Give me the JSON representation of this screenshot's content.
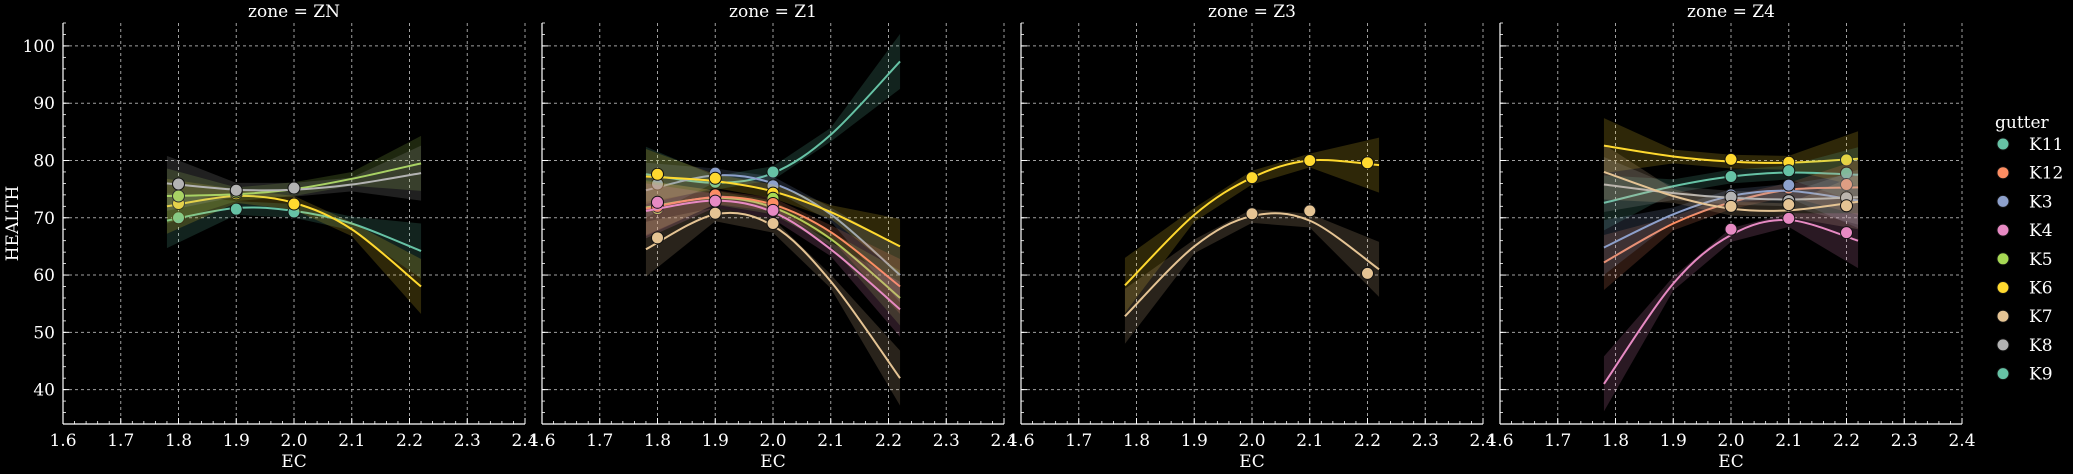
{
  "chart_data": {
    "type": "line",
    "xlabel": "EC",
    "ylabel": "HEALTH",
    "xlim": [
      1.6,
      2.4
    ],
    "ylim": [
      34,
      104
    ],
    "xticks": [
      "1.6",
      "1.7",
      "1.8",
      "1.9",
      "2.0",
      "2.1",
      "2.2",
      "2.3",
      "2.4"
    ],
    "yticks": [
      "40",
      "50",
      "60",
      "70",
      "80",
      "90",
      "100"
    ],
    "grid": true,
    "legend": {
      "title": "gutter",
      "placement": "right",
      "entries": [
        "K11",
        "K12",
        "K3",
        "K4",
        "K5",
        "K6",
        "K7",
        "K8",
        "K9"
      ]
    },
    "colors": {
      "K11": "#66c2a5",
      "K12": "#fc8d62",
      "K3": "#8da0cb",
      "K4": "#e78ac3",
      "K5": "#a6d854",
      "K6": "#ffd92f",
      "K7": "#e5c494",
      "K8": "#b3b3b3",
      "K9": "#66c2a5"
    },
    "panels": [
      {
        "title": "zone = ZN",
        "series": [
          {
            "name": "K9",
            "points": [
              [
                1.8,
                70.0
              ],
              [
                1.9,
                71.5
              ],
              [
                2.0,
                71.0
              ]
            ],
            "fit": [
              [
                1.78,
                69.5
              ],
              [
                1.9,
                71.7
              ],
              [
                2.0,
                71.2
              ],
              [
                2.1,
                69.0
              ],
              [
                2.22,
                64.2
              ]
            ]
          },
          {
            "name": "K6",
            "points": [
              [
                1.8,
                72.5
              ],
              [
                1.9,
                74.2
              ],
              [
                2.0,
                72.4
              ]
            ],
            "fit": [
              [
                1.78,
                72.0
              ],
              [
                1.9,
                73.8
              ],
              [
                2.0,
                72.6
              ],
              [
                2.1,
                68.0
              ],
              [
                2.22,
                58.0
              ]
            ]
          },
          {
            "name": "K5",
            "points": [
              [
                1.8,
                73.8
              ],
              [
                1.9,
                74.5
              ],
              [
                2.0,
                75.0
              ]
            ],
            "fit": [
              [
                1.78,
                73.8
              ],
              [
                1.9,
                74.1
              ],
              [
                2.0,
                75.0
              ],
              [
                2.1,
                76.8
              ],
              [
                2.22,
                79.5
              ]
            ]
          },
          {
            "name": "K8",
            "points": [
              [
                1.8,
                75.9
              ],
              [
                1.9,
                74.8
              ],
              [
                2.0,
                75.2
              ]
            ],
            "fit": [
              [
                1.78,
                76.0
              ],
              [
                1.9,
                74.9
              ],
              [
                2.0,
                74.9
              ],
              [
                2.1,
                75.8
              ],
              [
                2.22,
                77.8
              ]
            ]
          }
        ]
      },
      {
        "title": "zone = Z1",
        "series": [
          {
            "name": "K11",
            "points": [
              [
                1.8,
                77.2
              ],
              [
                1.9,
                76.2
              ],
              [
                2.0,
                78.0
              ]
            ],
            "fit": [
              [
                1.78,
                77.6
              ],
              [
                1.9,
                76.1
              ],
              [
                2.0,
                77.8
              ],
              [
                2.1,
                84.5
              ],
              [
                2.22,
                97.3
              ]
            ]
          },
          {
            "name": "K3",
            "points": [
              [
                1.8,
                75.9
              ],
              [
                1.9,
                77.8
              ],
              [
                2.0,
                75.6
              ]
            ],
            "fit": [
              [
                1.78,
                74.8
              ],
              [
                1.9,
                77.4
              ],
              [
                2.0,
                76.0
              ],
              [
                2.1,
                70.6
              ],
              [
                2.22,
                60.0
              ]
            ]
          },
          {
            "name": "K6",
            "points": [
              [
                1.8,
                77.6
              ],
              [
                1.9,
                76.9
              ],
              [
                2.0,
                74.3
              ]
            ],
            "fit": [
              [
                1.78,
                77.2
              ],
              [
                1.9,
                76.4
              ],
              [
                2.0,
                74.6
              ],
              [
                2.1,
                71.0
              ],
              [
                2.22,
                65.0
              ]
            ]
          },
          {
            "name": "K5",
            "points": [
              [
                1.8,
                71.6
              ],
              [
                1.9,
                74.0
              ],
              [
                2.0,
                73.4
              ]
            ],
            "fit": [
              [
                1.78,
                71.8
              ],
              [
                1.9,
                73.5
              ],
              [
                2.0,
                71.8
              ],
              [
                2.1,
                66.3
              ],
              [
                2.22,
                56.0
              ]
            ]
          },
          {
            "name": "K12",
            "points": [
              [
                1.8,
                72.0
              ],
              [
                1.9,
                74.0
              ],
              [
                2.0,
                72.5
              ]
            ],
            "fit": [
              [
                1.78,
                71.6
              ],
              [
                1.9,
                73.6
              ],
              [
                2.0,
                72.3
              ],
              [
                2.1,
                67.5
              ],
              [
                2.22,
                58.0
              ]
            ]
          },
          {
            "name": "K4",
            "points": [
              [
                1.8,
                72.7
              ],
              [
                1.9,
                72.9
              ],
              [
                2.0,
                71.3
              ]
            ],
            "fit": [
              [
                1.78,
                71.2
              ],
              [
                1.9,
                73.0
              ],
              [
                2.0,
                71.0
              ],
              [
                2.1,
                64.5
              ],
              [
                2.22,
                54.0
              ]
            ]
          },
          {
            "name": "K7",
            "points": [
              [
                1.8,
                66.5
              ],
              [
                1.9,
                70.8
              ],
              [
                2.0,
                69.0
              ]
            ],
            "fit": [
              [
                1.78,
                64.5
              ],
              [
                1.9,
                70.6
              ],
              [
                2.0,
                68.6
              ],
              [
                2.1,
                58.9
              ],
              [
                2.22,
                42.0
              ]
            ]
          }
        ]
      },
      {
        "title": "zone = Z3",
        "series": [
          {
            "name": "K6",
            "points": [
              [
                2.0,
                77.0
              ],
              [
                2.1,
                80.0
              ],
              [
                2.2,
                79.6
              ]
            ],
            "fit": [
              [
                1.78,
                58.2
              ],
              [
                1.9,
                70.5
              ],
              [
                2.0,
                77.0
              ],
              [
                2.1,
                80.0
              ],
              [
                2.22,
                79.2
              ]
            ]
          },
          {
            "name": "K7",
            "points": [
              [
                2.0,
                70.7
              ],
              [
                2.1,
                71.2
              ],
              [
                2.2,
                60.3
              ]
            ],
            "fit": [
              [
                1.78,
                52.8
              ],
              [
                1.9,
                65.0
              ],
              [
                2.0,
                70.3
              ],
              [
                2.1,
                69.5
              ],
              [
                2.22,
                61.0
              ]
            ]
          }
        ]
      },
      {
        "title": "zone = Z4",
        "series": [
          {
            "name": "K6",
            "points": [
              [
                2.0,
                80.2
              ],
              [
                2.1,
                79.7
              ],
              [
                2.2,
                80.1
              ]
            ],
            "fit": [
              [
                1.78,
                82.6
              ],
              [
                1.9,
                80.7
              ],
              [
                2.0,
                79.8
              ],
              [
                2.1,
                79.6
              ],
              [
                2.22,
                80.3
              ]
            ]
          },
          {
            "name": "K11",
            "points": [
              [
                2.0,
                77.2
              ],
              [
                2.1,
                78.2
              ],
              [
                2.2,
                77.8
              ]
            ],
            "fit": [
              [
                1.78,
                72.6
              ],
              [
                1.9,
                75.5
              ],
              [
                2.0,
                77.2
              ],
              [
                2.1,
                77.9
              ],
              [
                2.22,
                77.5
              ]
            ]
          },
          {
            "name": "K12",
            "points": [
              [
                2.0,
                72.5
              ],
              [
                2.1,
                75.2
              ],
              [
                2.2,
                75.8
              ]
            ],
            "fit": [
              [
                1.78,
                62.2
              ],
              [
                1.9,
                69.0
              ],
              [
                2.0,
                72.7
              ],
              [
                2.1,
                74.9
              ],
              [
                2.22,
                75.3
              ]
            ]
          },
          {
            "name": "K3",
            "points": [
              [
                2.0,
                74.0
              ],
              [
                2.1,
                75.7
              ],
              [
                2.2,
                73.4
              ]
            ],
            "fit": [
              [
                1.78,
                64.8
              ],
              [
                1.9,
                70.6
              ],
              [
                2.0,
                73.8
              ],
              [
                2.1,
                74.7
              ],
              [
                2.22,
                73.0
              ]
            ]
          },
          {
            "name": "K8",
            "points": [
              [
                2.0,
                73.6
              ],
              [
                2.1,
                73.0
              ],
              [
                2.2,
                73.5
              ]
            ],
            "fit": [
              [
                1.78,
                75.8
              ],
              [
                1.9,
                74.3
              ],
              [
                2.0,
                73.5
              ],
              [
                2.1,
                73.2
              ],
              [
                2.22,
                73.6
              ]
            ]
          },
          {
            "name": "K7",
            "points": [
              [
                2.0,
                72.0
              ],
              [
                2.1,
                72.3
              ],
              [
                2.2,
                72.1
              ]
            ],
            "fit": [
              [
                1.78,
                78.0
              ],
              [
                1.9,
                73.8
              ],
              [
                2.0,
                71.6
              ],
              [
                2.1,
                71.3
              ],
              [
                2.22,
                72.8
              ]
            ]
          },
          {
            "name": "K4",
            "points": [
              [
                2.0,
                68.0
              ],
              [
                2.1,
                69.9
              ],
              [
                2.2,
                67.4
              ]
            ],
            "fit": [
              [
                1.78,
                41.0
              ],
              [
                1.9,
                58.5
              ],
              [
                2.0,
                67.0
              ],
              [
                2.1,
                69.6
              ],
              [
                2.22,
                66.0
              ]
            ]
          }
        ]
      }
    ]
  }
}
